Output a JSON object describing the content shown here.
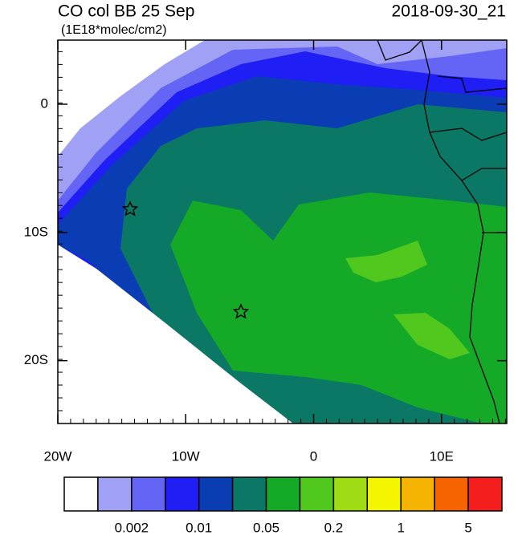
{
  "header": {
    "title": "CO col BB 25 Sep",
    "units": "(1E18*molec/cm2)",
    "time": "2018-09-30_21"
  },
  "map": {
    "lon_range": [
      -20,
      15.1
    ],
    "lat_range": [
      -24.9,
      5
    ],
    "lon_ticks": [
      {
        "value": -20,
        "label": "20W"
      },
      {
        "value": -10,
        "label": "10W"
      },
      0,
      {
        "value": 10,
        "label": "10E"
      }
    ],
    "lat_ticks": [
      0,
      {
        "value": -10,
        "label": "10S"
      },
      {
        "value": -20,
        "label": "20S"
      }
    ]
  },
  "colorbar": {
    "colors": [
      "#ffffff",
      "#a0a0f5",
      "#6464f5",
      "#1e1ef5",
      "#0a3cb4",
      "#0a7864",
      "#14aa28",
      "#50c81e",
      "#a0dc14",
      "#f5f500",
      "#f5b400",
      "#f56400",
      "#f51e1e"
    ],
    "labels": [
      null,
      null,
      "0.002",
      null,
      "0.01",
      null,
      "0.05",
      null,
      "0.2",
      null,
      "1",
      null,
      "5",
      null
    ]
  }
}
